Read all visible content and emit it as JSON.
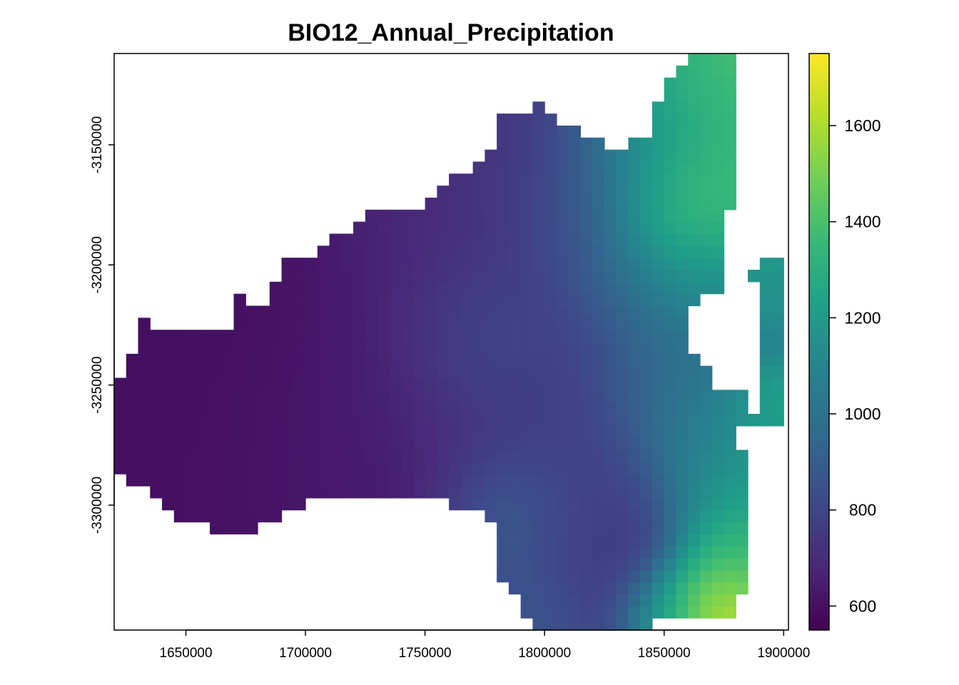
{
  "chart_data": {
    "type": "heatmap",
    "title": "BIO12_Annual_Precipitation",
    "xlabel": "",
    "ylabel": "",
    "xlim": [
      1620000,
      1902000
    ],
    "ylim": [
      -3352000,
      -3112000
    ],
    "x_ticks": [
      1650000,
      1700000,
      1750000,
      1800000,
      1850000,
      1900000
    ],
    "x_tick_labels": [
      "1650000",
      "1700000",
      "1750000",
      "1800000",
      "1850000",
      "1900000"
    ],
    "y_ticks": [
      -3150000,
      -3200000,
      -3250000,
      -3300000
    ],
    "y_tick_labels": [
      "-3150000",
      "-3200000",
      "-3250000",
      "-3300000"
    ],
    "colorbar": {
      "range": [
        550,
        1750
      ],
      "ticks": [
        600,
        800,
        1000,
        1200,
        1400,
        1600
      ],
      "tick_labels": [
        "600",
        "800",
        "1000",
        "1200",
        "1400",
        "1600"
      ],
      "colormap": "viridis",
      "stops": [
        "#440154",
        "#482878",
        "#3e4a89",
        "#31688e",
        "#26828e",
        "#1f9e89",
        "#35b779",
        "#6ece58",
        "#b5de2b",
        "#fde725"
      ]
    },
    "grid": false,
    "legend": "right colorbar",
    "mask": [
      [
        [
          1624000,
          -3244000
        ],
        [
          1632000,
          -3224000
        ],
        [
          1645000,
          -3228000
        ],
        [
          1656000,
          -3229000
        ],
        [
          1668000,
          -3227000
        ],
        [
          1673000,
          -3213000
        ],
        [
          1682000,
          -3216000
        ],
        [
          1693000,
          -3198000
        ],
        [
          1706000,
          -3194000
        ],
        [
          1719000,
          -3184000
        ],
        [
          1728000,
          -3176000
        ],
        [
          1743000,
          -3178000
        ],
        [
          1752000,
          -3174000
        ],
        [
          1767000,
          -3160000
        ],
        [
          1776000,
          -3158000
        ],
        [
          1780000,
          -3139000
        ],
        [
          1797000,
          -3133000
        ],
        [
          1815000,
          -3146000
        ],
        [
          1830000,
          -3152000
        ],
        [
          1843000,
          -3145000
        ],
        [
          1851000,
          -3126000
        ],
        [
          1857000,
          -3115000
        ],
        [
          1870000,
          -3110000
        ],
        [
          1882000,
          -3113000
        ],
        [
          1880000,
          -3130000
        ],
        [
          1878000,
          -3160000
        ],
        [
          1877000,
          -3190000
        ],
        [
          1875000,
          -3213000
        ],
        [
          1862000,
          -3215000
        ],
        [
          1860000,
          -3235000
        ],
        [
          1868000,
          -3240000
        ],
        [
          1868000,
          -3252000
        ],
        [
          1885000,
          -3250000
        ],
        [
          1882000,
          -3272000
        ],
        [
          1885000,
          -3296000
        ],
        [
          1884000,
          -3318000
        ],
        [
          1882000,
          -3342000
        ],
        [
          1876000,
          -3346000
        ],
        [
          1855000,
          -3348000
        ],
        [
          1845000,
          -3350000
        ],
        [
          1822000,
          -3356000
        ],
        [
          1795000,
          -3354000
        ],
        [
          1790000,
          -3342000
        ],
        [
          1781000,
          -3330000
        ],
        [
          1779000,
          -3312000
        ],
        [
          1776000,
          -3302000
        ],
        [
          1766000,
          -3300000
        ],
        [
          1750000,
          -3298000
        ],
        [
          1729000,
          -3299000
        ],
        [
          1710000,
          -3296000
        ],
        [
          1700000,
          -3300000
        ],
        [
          1692000,
          -3304000
        ],
        [
          1678000,
          -3310000
        ],
        [
          1661000,
          -3311000
        ],
        [
          1646000,
          -3304000
        ],
        [
          1633000,
          -3294000
        ],
        [
          1620000,
          -3284000
        ],
        [
          1620000,
          -3252000
        ]
      ],
      [
        [
          1887000,
          -3200000
        ],
        [
          1902000,
          -3198000
        ],
        [
          1902000,
          -3258000
        ],
        [
          1895000,
          -3270000
        ],
        [
          1887000,
          -3266000
        ],
        [
          1890000,
          -3230000
        ]
      ]
    ],
    "hotspots": [
      {
        "x": 1668000,
        "y": -3268000,
        "value": 600,
        "r": 80000
      },
      {
        "x": 1705000,
        "y": -3215000,
        "value": 580,
        "r": 38000
      },
      {
        "x": 1640000,
        "y": -3255000,
        "value": 600,
        "r": 30000
      },
      {
        "x": 1730000,
        "y": -3268000,
        "value": 660,
        "r": 38000
      },
      {
        "x": 1760000,
        "y": -3218000,
        "value": 760,
        "r": 36000
      },
      {
        "x": 1770000,
        "y": -3232000,
        "value": 920,
        "r": 20000
      },
      {
        "x": 1745000,
        "y": -3165000,
        "value": 700,
        "r": 30000
      },
      {
        "x": 1800000,
        "y": -3150000,
        "value": 770,
        "r": 35000
      },
      {
        "x": 1812000,
        "y": -3225000,
        "value": 780,
        "r": 38000
      },
      {
        "x": 1823000,
        "y": -3180000,
        "value": 880,
        "r": 22000
      },
      {
        "x": 1792000,
        "y": -3285000,
        "value": 830,
        "r": 25000
      },
      {
        "x": 1810000,
        "y": -3300000,
        "value": 790,
        "r": 30000
      },
      {
        "x": 1785000,
        "y": -3305000,
        "value": 1050,
        "r": 16000
      },
      {
        "x": 1795000,
        "y": -3342000,
        "value": 940,
        "r": 16000
      },
      {
        "x": 1825000,
        "y": -3322000,
        "value": 740,
        "r": 22000
      },
      {
        "x": 1845000,
        "y": -3198000,
        "value": 1200,
        "r": 24000
      },
      {
        "x": 1843000,
        "y": -3155000,
        "value": 1120,
        "r": 20000
      },
      {
        "x": 1850000,
        "y": -3135000,
        "value": 1250,
        "r": 18000
      },
      {
        "x": 1862000,
        "y": -3145000,
        "value": 1420,
        "r": 20000
      },
      {
        "x": 1868000,
        "y": -3120000,
        "value": 1440,
        "r": 16000
      },
      {
        "x": 1853000,
        "y": -3178000,
        "value": 1620,
        "r": 15000
      },
      {
        "x": 1864000,
        "y": -3170000,
        "value": 1510,
        "r": 20000
      },
      {
        "x": 1862000,
        "y": -3200000,
        "value": 1200,
        "r": 18000
      },
      {
        "x": 1853000,
        "y": -3250000,
        "value": 1050,
        "r": 20000
      },
      {
        "x": 1868000,
        "y": -3270000,
        "value": 1130,
        "r": 18000
      },
      {
        "x": 1878000,
        "y": -3295000,
        "value": 1260,
        "r": 18000
      },
      {
        "x": 1875000,
        "y": -3322000,
        "value": 1460,
        "r": 14000
      },
      {
        "x": 1868000,
        "y": -3342000,
        "value": 1740,
        "r": 12000
      },
      {
        "x": 1850000,
        "y": -3343000,
        "value": 1300,
        "r": 12000
      },
      {
        "x": 1892000,
        "y": -3213000,
        "value": 1180,
        "r": 10000
      },
      {
        "x": 1892000,
        "y": -3258000,
        "value": 1280,
        "r": 12000
      }
    ]
  }
}
